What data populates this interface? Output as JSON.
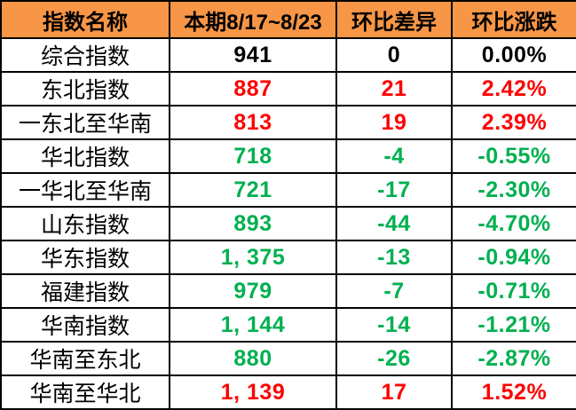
{
  "table": {
    "headers": [
      "指数名称",
      "本期8/17~8/23",
      "环比差异",
      "环比涨跌"
    ],
    "rows": [
      {
        "name": "综合指数",
        "current": "941",
        "diff": "0",
        "pct": "0.00%",
        "trend": "flat"
      },
      {
        "name": "东北指数",
        "current": "887",
        "diff": "21",
        "pct": "2.42%",
        "trend": "up"
      },
      {
        "name": "一东北至华南",
        "current": "813",
        "diff": "19",
        "pct": "2.39%",
        "trend": "up"
      },
      {
        "name": "华北指数",
        "current": "718",
        "diff": "-4",
        "pct": "-0.55%",
        "trend": "down"
      },
      {
        "name": "一华北至华南",
        "current": "721",
        "diff": "-17",
        "pct": "-2.30%",
        "trend": "down"
      },
      {
        "name": "山东指数",
        "current": "893",
        "diff": "-44",
        "pct": "-4.70%",
        "trend": "down"
      },
      {
        "name": "华东指数",
        "current": "1, 375",
        "diff": "-13",
        "pct": "-0.94%",
        "trend": "down"
      },
      {
        "name": "福建指数",
        "current": "979",
        "diff": "-7",
        "pct": "-0.71%",
        "trend": "down"
      },
      {
        "name": "华南指数",
        "current": "1, 144",
        "diff": "-14",
        "pct": "-1.21%",
        "trend": "down"
      },
      {
        "name": "华南至东北",
        "current": "880",
        "diff": "-26",
        "pct": "-2.87%",
        "trend": "down"
      },
      {
        "name": "华南至华北",
        "current": "1, 139",
        "diff": "17",
        "pct": "1.52%",
        "trend": "up"
      }
    ]
  },
  "colors": {
    "header_bg": "#F79646",
    "up": "#FF0000",
    "down": "#00B050",
    "flat": "#000000",
    "border": "#000000"
  },
  "chart_data": {
    "type": "table",
    "columns": [
      "指数名称",
      "本期8/17~8/23",
      "环比差异",
      "环比涨跌"
    ],
    "rows": [
      {
        "name": "综合指数",
        "current": 941,
        "diff": 0,
        "pct_change": 0.0
      },
      {
        "name": "东北指数",
        "current": 887,
        "diff": 21,
        "pct_change": 2.42
      },
      {
        "name": "一东北至华南",
        "current": 813,
        "diff": 19,
        "pct_change": 2.39
      },
      {
        "name": "华北指数",
        "current": 718,
        "diff": -4,
        "pct_change": -0.55
      },
      {
        "name": "一华北至华南",
        "current": 721,
        "diff": -17,
        "pct_change": -2.3
      },
      {
        "name": "山东指数",
        "current": 893,
        "diff": -44,
        "pct_change": -4.7
      },
      {
        "name": "华东指数",
        "current": 1375,
        "diff": -13,
        "pct_change": -0.94
      },
      {
        "name": "福建指数",
        "current": 979,
        "diff": -7,
        "pct_change": -0.71
      },
      {
        "name": "华南指数",
        "current": 1144,
        "diff": -14,
        "pct_change": -1.21
      },
      {
        "name": "华南至东北",
        "current": 880,
        "diff": -26,
        "pct_change": -2.87
      },
      {
        "name": "华南至华北",
        "current": 1139,
        "diff": 17,
        "pct_change": 1.52
      }
    ]
  }
}
